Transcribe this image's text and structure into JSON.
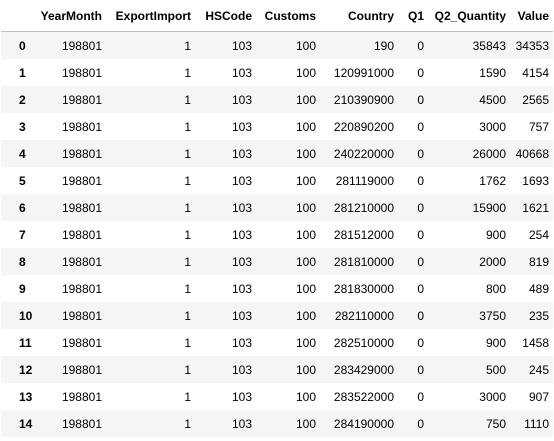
{
  "table": {
    "index_header": "",
    "columns": [
      "YearMonth",
      "ExportImport",
      "HSCode",
      "Customs",
      "Country",
      "Q1",
      "Q2_Quantity",
      "Value"
    ],
    "rows": [
      {
        "index": "0",
        "cells": [
          "198801",
          "1",
          "103",
          "100",
          "190",
          "0",
          "35843",
          "34353"
        ]
      },
      {
        "index": "1",
        "cells": [
          "198801",
          "1",
          "103",
          "100",
          "120991000",
          "0",
          "1590",
          "4154"
        ]
      },
      {
        "index": "2",
        "cells": [
          "198801",
          "1",
          "103",
          "100",
          "210390900",
          "0",
          "4500",
          "2565"
        ]
      },
      {
        "index": "3",
        "cells": [
          "198801",
          "1",
          "103",
          "100",
          "220890200",
          "0",
          "3000",
          "757"
        ]
      },
      {
        "index": "4",
        "cells": [
          "198801",
          "1",
          "103",
          "100",
          "240220000",
          "0",
          "26000",
          "40668"
        ]
      },
      {
        "index": "5",
        "cells": [
          "198801",
          "1",
          "103",
          "100",
          "281119000",
          "0",
          "1762",
          "1693"
        ]
      },
      {
        "index": "6",
        "cells": [
          "198801",
          "1",
          "103",
          "100",
          "281210000",
          "0",
          "15900",
          "1621"
        ]
      },
      {
        "index": "7",
        "cells": [
          "198801",
          "1",
          "103",
          "100",
          "281512000",
          "0",
          "900",
          "254"
        ]
      },
      {
        "index": "8",
        "cells": [
          "198801",
          "1",
          "103",
          "100",
          "281810000",
          "0",
          "2000",
          "819"
        ]
      },
      {
        "index": "9",
        "cells": [
          "198801",
          "1",
          "103",
          "100",
          "281830000",
          "0",
          "800",
          "489"
        ]
      },
      {
        "index": "10",
        "cells": [
          "198801",
          "1",
          "103",
          "100",
          "282110000",
          "0",
          "3750",
          "235"
        ]
      },
      {
        "index": "11",
        "cells": [
          "198801",
          "1",
          "103",
          "100",
          "282510000",
          "0",
          "900",
          "1458"
        ]
      },
      {
        "index": "12",
        "cells": [
          "198801",
          "1",
          "103",
          "100",
          "283429000",
          "0",
          "500",
          "245"
        ]
      },
      {
        "index": "13",
        "cells": [
          "198801",
          "1",
          "103",
          "100",
          "283522000",
          "0",
          "3000",
          "907"
        ]
      },
      {
        "index": "14",
        "cells": [
          "198801",
          "1",
          "103",
          "100",
          "284190000",
          "0",
          "750",
          "1110"
        ]
      }
    ]
  }
}
